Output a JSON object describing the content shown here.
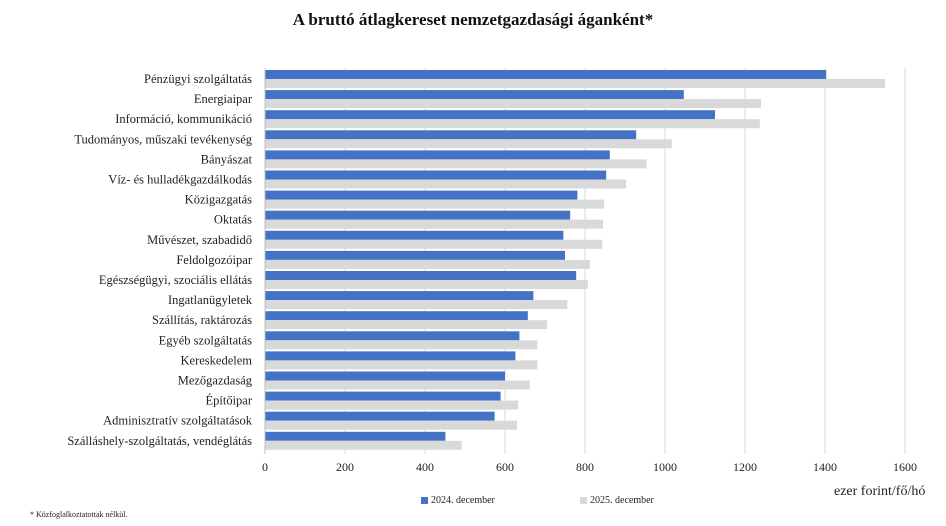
{
  "chart_data": {
    "type": "bar",
    "orientation": "horizontal",
    "title": "A bruttó átlagkereset nemzetgazdasági áganként*",
    "xlabel": "ezer forint/fő/hó",
    "xlim": [
      0,
      1600
    ],
    "xticks": [
      0,
      200,
      400,
      600,
      800,
      1000,
      1200,
      1400,
      1600
    ],
    "grid": "vertical",
    "categories": [
      "Pénzügyi szolgáltatás",
      "Energiaipar",
      "Információ, kommunikáció",
      "Tudományos, műszaki tevékenység",
      "Bányászat",
      "Víz- és hulladékgazdálkodás",
      "Közigazgatás",
      "Oktatás",
      "Művészet, szabadidő",
      "Feldolgozóipar",
      "Egészségügyi, szociális ellátás",
      "Ingatlanügyletek",
      "Szállítás, raktározás",
      "Egyéb szolgáltatás",
      "Kereskedelem",
      "Mezőgazdaság",
      "Építőipar",
      "Adminisztratív szolgáltatások",
      "Szálláshely-szolgáltatás, vendéglátás"
    ],
    "series": [
      {
        "name": "2024. december",
        "color": "#4472C4",
        "values": [
          1403,
          1047,
          1125,
          928,
          862,
          853,
          781,
          763,
          746,
          750,
          778,
          671,
          657,
          636,
          626,
          600,
          589,
          574,
          451
        ]
      },
      {
        "name": "2025. december",
        "color": "#D9D9D9",
        "values": [
          1550,
          1240,
          1237,
          1017,
          954,
          903,
          848,
          845,
          843,
          812,
          807,
          756,
          705,
          681,
          681,
          662,
          633,
          630,
          492
        ]
      }
    ],
    "legend_position": "bottom",
    "footnote": "* Közfoglalkoztatottak nélkül."
  }
}
